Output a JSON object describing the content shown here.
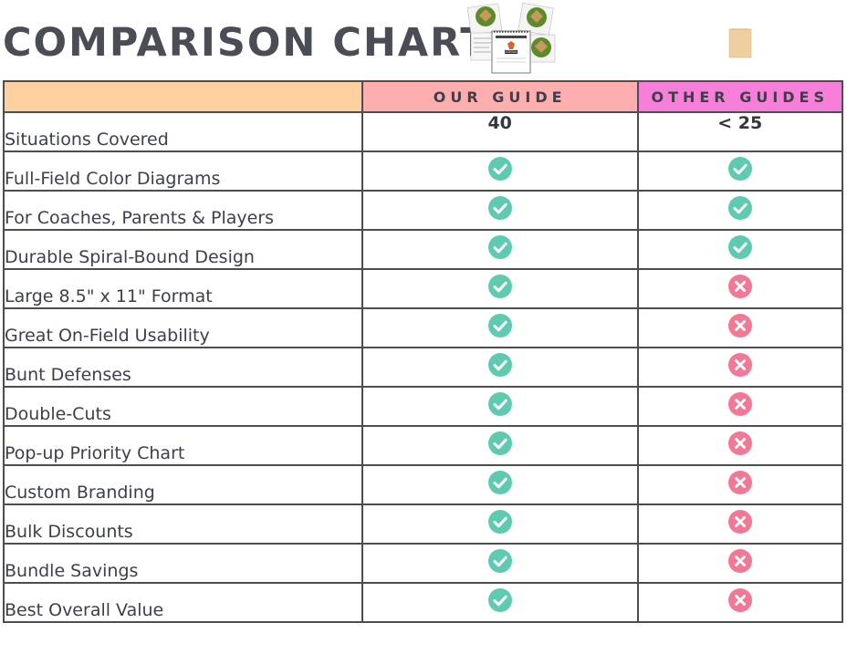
{
  "page": {
    "title": "COMPARISON CHART"
  },
  "colors": {
    "header_feature_bg": "#ffd0a0",
    "header_ours_bg": "#ffaeb0",
    "header_other_bg": "#f77fd9",
    "check": "#5ecbb0",
    "cross": "#f27895"
  },
  "images": {
    "product_cover_text": "BASEBALL"
  },
  "table": {
    "headers": {
      "feature": "",
      "ours": "OUR GUIDE",
      "other": "OTHER GUIDES"
    },
    "rows": [
      {
        "feature": "Situations Covered",
        "ours": "40",
        "other": "< 25"
      },
      {
        "feature": "Full-Field Color Diagrams",
        "ours": "check",
        "other": "check"
      },
      {
        "feature": "For Coaches, Parents & Players",
        "ours": "check",
        "other": "check"
      },
      {
        "feature": "Durable Spiral-Bound Design",
        "ours": "check",
        "other": "check"
      },
      {
        "feature": "Large 8.5\" x 11\" Format",
        "ours": "check",
        "other": "cross"
      },
      {
        "feature": "Great On-Field Usability",
        "ours": "check",
        "other": "cross"
      },
      {
        "feature": "Bunt Defenses",
        "ours": "check",
        "other": "cross"
      },
      {
        "feature": "Double-Cuts",
        "ours": "check",
        "other": "cross"
      },
      {
        "feature": "Pop-up Priority Chart",
        "ours": "check",
        "other": "cross"
      },
      {
        "feature": "Custom Branding",
        "ours": "check",
        "other": "cross"
      },
      {
        "feature": "Bulk Discounts",
        "ours": "check",
        "other": "cross"
      },
      {
        "feature": "Bundle Savings",
        "ours": "check",
        "other": "cross"
      },
      {
        "feature": "Best Overall Value",
        "ours": "check",
        "other": "cross"
      }
    ]
  }
}
